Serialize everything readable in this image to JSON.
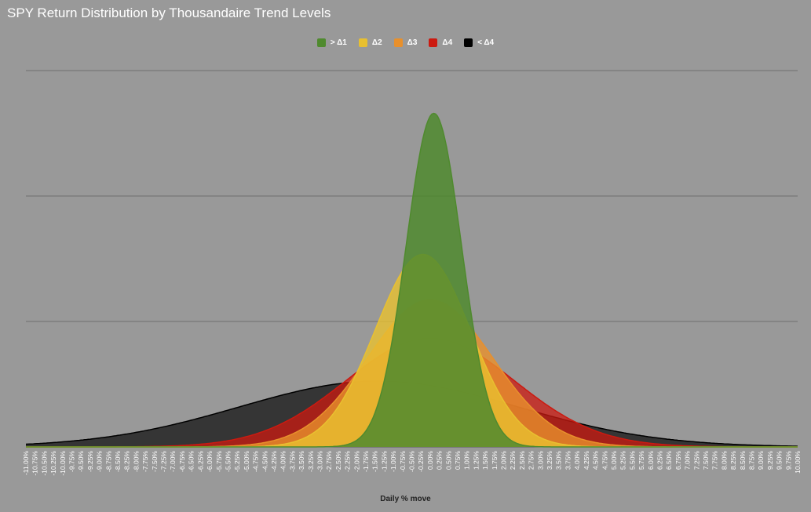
{
  "chart_data": {
    "type": "area",
    "title": "SPY Return Distribution by Thousandaire Trend Levels",
    "xlabel": "Daily % move",
    "ylabel": "",
    "xlim": [
      -11.0,
      10.0
    ],
    "ylim": [
      0,
      0.6
    ],
    "y_gridlines": [
      0,
      0.2,
      0.4,
      0.6
    ],
    "grid": true,
    "legend_position": "top",
    "x_tick_start": -11.0,
    "x_tick_step": 0.25,
    "x_tick_count": 85,
    "series": [
      {
        "name": "> Δ1",
        "mean": 0.1,
        "sd": 0.75,
        "color": "#4f8a2e",
        "fill_opacity": 0.85
      },
      {
        "name": "Δ2",
        "mean": -0.2,
        "sd": 1.3,
        "color": "#e8c030",
        "fill_opacity": 0.8
      },
      {
        "name": "Δ3",
        "mean": 0.0,
        "sd": 1.7,
        "color": "#e8902c",
        "fill_opacity": 0.8
      },
      {
        "name": "Δ4",
        "mean": 0.0,
        "sd": 2.3,
        "color": "#cc1a10",
        "fill_opacity": 0.75
      },
      {
        "name": "< Δ4",
        "mean": -1.4,
        "sd": 3.8,
        "color": "#000000",
        "fill_opacity": 0.65
      }
    ]
  }
}
